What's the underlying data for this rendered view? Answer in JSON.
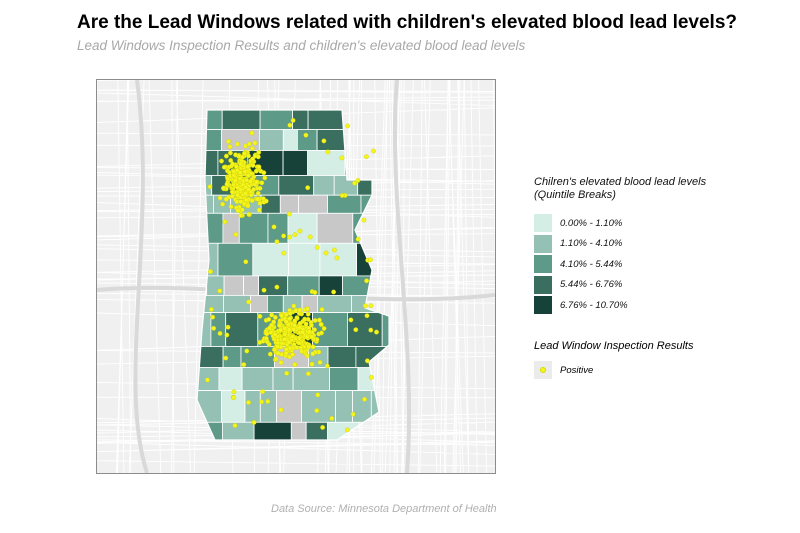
{
  "header": {
    "title": "Are the Lead Windows related with children's elevated blood lead levels?",
    "subtitle": "Lead Windows Inspection Results and children's elevated blood lead levels"
  },
  "legend_choropleth": {
    "title": "Chilren's elevated blood lead levels\n (Quintile Breaks)",
    "classes": [
      {
        "label": "0.00% - 1.10%",
        "color": "#d4eee6"
      },
      {
        "label": "1.10% - 4.10%",
        "color": "#94c1b4"
      },
      {
        "label": "4.10% - 5.44%",
        "color": "#5e9a88"
      },
      {
        "label": "5.44% - 6.76%",
        "color": "#3a6f60"
      },
      {
        "label": "6.76% - 10.70%",
        "color": "#17423a"
      }
    ]
  },
  "legend_points": {
    "title": "Lead Window Inspection Results",
    "label": "Positive",
    "color": "#f5f51e"
  },
  "footer": {
    "source": "Data Source: Minnesota Department of Health"
  }
}
